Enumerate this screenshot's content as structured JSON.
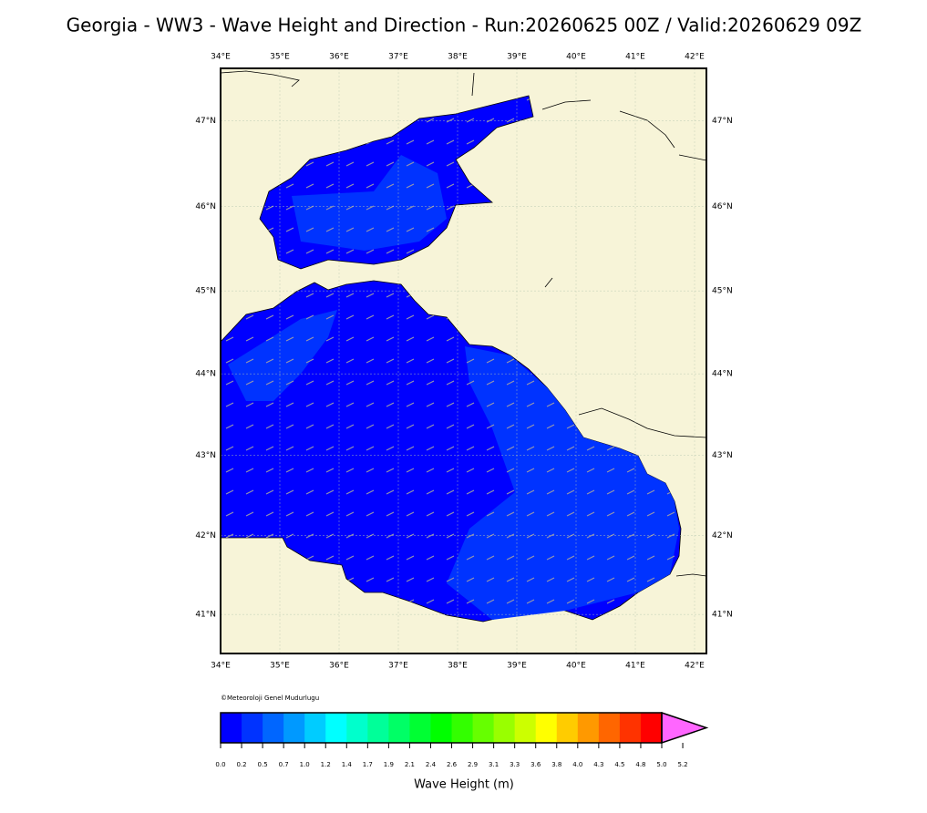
{
  "title": "Georgia - WW3 - Wave Height and Direction - Run:20260625 00Z / Valid:20260629 09Z",
  "map": {
    "xlim": [
      34,
      42.2
    ],
    "ylim": [
      40.5,
      47.6
    ],
    "grid": true,
    "xticks": [
      {
        "value": 34,
        "label": "34°E"
      },
      {
        "value": 35,
        "label": "35°E"
      },
      {
        "value": 36,
        "label": "36°E"
      },
      {
        "value": 37,
        "label": "37°E"
      },
      {
        "value": 38,
        "label": "38°E"
      },
      {
        "value": 39,
        "label": "39°E"
      },
      {
        "value": 40,
        "label": "40°E"
      },
      {
        "value": 41,
        "label": "41°E"
      },
      {
        "value": 42,
        "label": "42°E"
      }
    ],
    "yticks": [
      {
        "value": 41,
        "label": "41°N"
      },
      {
        "value": 42,
        "label": "42°N"
      },
      {
        "value": 43,
        "label": "43°N"
      },
      {
        "value": 44,
        "label": "44°N"
      },
      {
        "value": 45,
        "label": "45°N"
      },
      {
        "value": 46,
        "label": "46°N"
      },
      {
        "value": 47,
        "label": "47°N"
      }
    ]
  },
  "copyright": "©Meteoroloji Genel Mudurlugu",
  "colorbar": {
    "label": "Wave Height (m)",
    "ticks": [
      {
        "value": 0,
        "label": "0.0"
      },
      0.2,
      0.5,
      0.7,
      {
        "value": 1,
        "label": "1.0"
      },
      1.2,
      1.4,
      1.7,
      1.9,
      2.1,
      2.4,
      2.6,
      2.9,
      3.1,
      3.3,
      3.6,
      3.8,
      {
        "value": 4,
        "label": "4.0"
      },
      4.3,
      4.5,
      4.8,
      {
        "value": 5,
        "label": "5.0"
      },
      5.2
    ],
    "colors": [
      "#0000ff",
      "#0033ff",
      "#0066ff",
      "#0099ff",
      "#00ccff",
      "#00ffff",
      "#00ffcc",
      "#00ff99",
      "#00ff66",
      "#00ff33",
      "#00ff00",
      "#33ff00",
      "#66ff00",
      "#99ff00",
      "#ccff00",
      "#ffff00",
      "#ffcc00",
      "#ff9900",
      "#ff6600",
      "#ff3300",
      "#ff0000"
    ],
    "extend_color": "#ff66ff"
  }
}
